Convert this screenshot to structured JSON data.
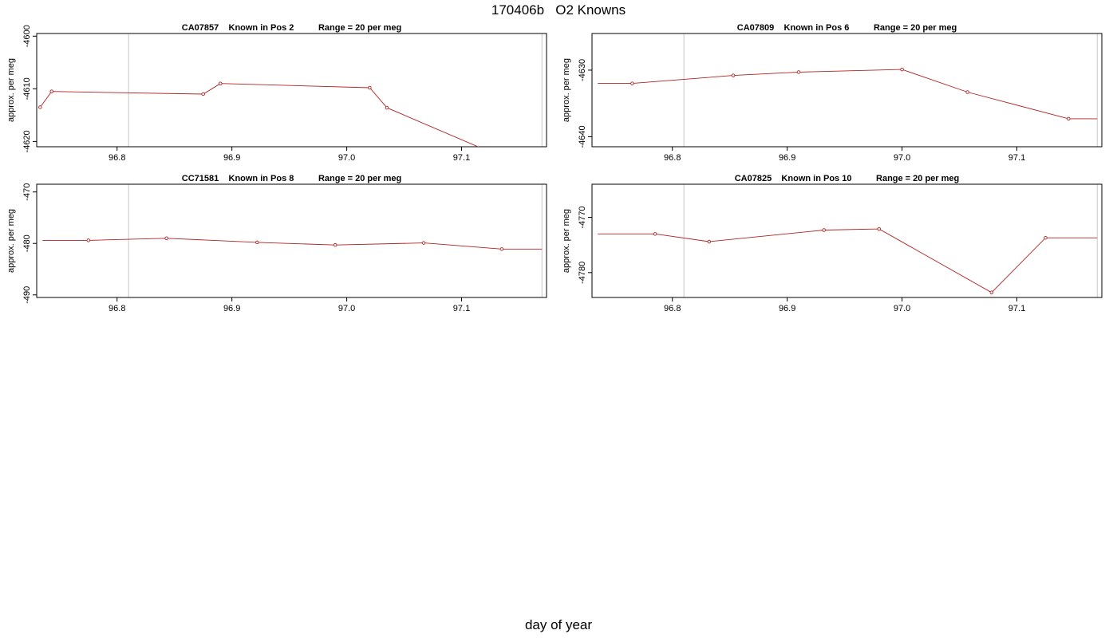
{
  "page": {
    "title_run": "170406b",
    "title_name": "O2 Knowns",
    "xlabel": "day of year"
  },
  "colors": {
    "series": "#b22222",
    "frame": "#000000",
    "vline": "#c8c8c8"
  },
  "chart_data": [
    {
      "type": "line",
      "title": "CA07857    Known in Pos 2          Range = 20 per meg",
      "ylabel": "approx. per meg",
      "xlim": [
        96.73,
        97.174
      ],
      "ylim": [
        -4621,
        -4599.5
      ],
      "x_ticks": [
        96.8,
        96.9,
        97.0,
        97.1
      ],
      "x_tick_labels": [
        "96.8",
        "96.9",
        "97.0",
        "97.1"
      ],
      "y_ticks": [
        -4600,
        -4610,
        -4620
      ],
      "y_tick_labels": [
        "-4600",
        "-4610",
        "-4620"
      ],
      "vlines": [
        96.81,
        97.17
      ],
      "series": [
        {
          "x": [
            96.733,
            96.743,
            96.875,
            96.89,
            97.02,
            97.035,
            97.125
          ],
          "y": [
            -4613.5,
            -4610.5,
            -4611.0,
            -4609.0,
            -4609.8,
            -4613.6,
            -4622.0
          ],
          "markers": [
            true,
            true,
            true,
            true,
            true,
            true,
            false
          ]
        }
      ]
    },
    {
      "type": "line",
      "title": "CA07809    Known in Pos 6          Range = 20 per meg",
      "ylabel": "approx. per meg",
      "xlim": [
        96.73,
        97.174
      ],
      "ylim": [
        -4641.5,
        -4624.5
      ],
      "x_ticks": [
        96.8,
        96.9,
        97.0,
        97.1
      ],
      "x_tick_labels": [
        "96.8",
        "96.9",
        "97.0",
        "97.1"
      ],
      "y_ticks": [
        -4630,
        -4640
      ],
      "y_tick_labels": [
        "-4630",
        "-4640"
      ],
      "vlines": [
        96.81,
        97.17
      ],
      "series": [
        {
          "x": [
            96.735,
            96.765,
            96.853,
            96.91,
            97.0,
            97.057,
            97.145,
            97.17
          ],
          "y": [
            -4632.0,
            -4632.0,
            -4630.8,
            -4630.3,
            -4629.9,
            -4633.3,
            -4637.3,
            -4637.3
          ],
          "markers": [
            false,
            true,
            true,
            true,
            true,
            true,
            true,
            false
          ]
        }
      ]
    },
    {
      "type": "line",
      "title": "CC71581    Known in Pos 8          Range = 20 per meg",
      "ylabel": "approx. per meg",
      "xlim": [
        96.73,
        97.174
      ],
      "ylim": [
        -490.5,
        -468.5
      ],
      "x_ticks": [
        96.8,
        96.9,
        97.0,
        97.1
      ],
      "x_tick_labels": [
        "96.8",
        "96.9",
        "97.0",
        "97.1"
      ],
      "y_ticks": [
        -470,
        -480,
        -490
      ],
      "y_tick_labels": [
        "-470",
        "-480",
        "-490"
      ],
      "vlines": [
        96.81,
        97.17
      ],
      "series": [
        {
          "x": [
            96.735,
            96.775,
            96.843,
            96.922,
            96.99,
            97.067,
            97.135,
            97.17
          ],
          "y": [
            -479.4,
            -479.4,
            -479.0,
            -479.8,
            -480.3,
            -479.9,
            -481.1,
            -481.1
          ],
          "markers": [
            false,
            true,
            true,
            true,
            true,
            true,
            true,
            false
          ]
        }
      ]
    },
    {
      "type": "line",
      "title": "CA07825    Known in Pos 10          Range = 20 per meg",
      "ylabel": "approx. per meg",
      "xlim": [
        96.73,
        97.174
      ],
      "ylim": [
        -4784.5,
        -4764.0
      ],
      "x_ticks": [
        96.8,
        96.9,
        97.0,
        97.1
      ],
      "x_tick_labels": [
        "96.8",
        "96.9",
        "97.0",
        "97.1"
      ],
      "y_ticks": [
        -4770,
        -4780
      ],
      "y_tick_labels": [
        "-4770",
        "-4780"
      ],
      "vlines": [
        96.81,
        97.17
      ],
      "series": [
        {
          "x": [
            96.735,
            96.785,
            96.832,
            96.932,
            96.98,
            97.078,
            97.125,
            97.17
          ],
          "y": [
            -4773.0,
            -4773.0,
            -4774.4,
            -4772.3,
            -4772.1,
            -4783.6,
            -4773.7,
            -4773.7
          ],
          "markers": [
            false,
            true,
            true,
            true,
            true,
            true,
            true,
            false
          ]
        }
      ]
    }
  ]
}
